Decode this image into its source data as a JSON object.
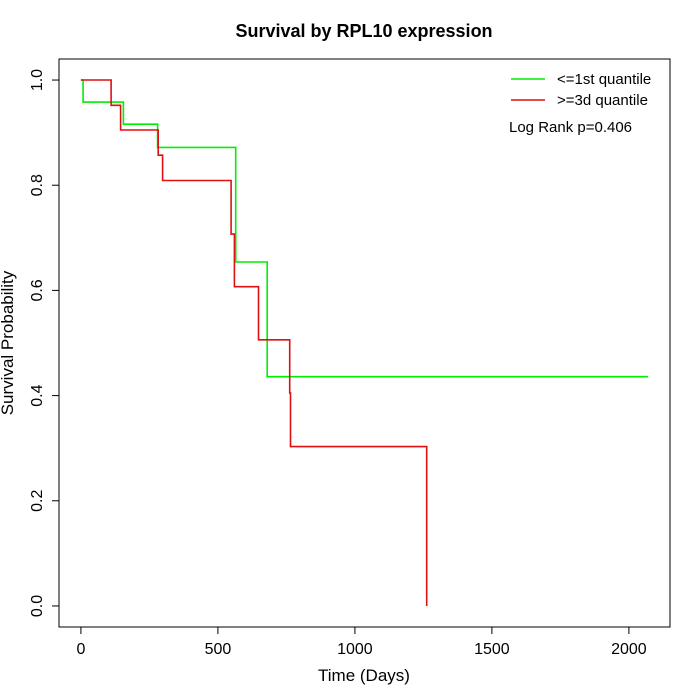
{
  "chart_data": {
    "type": "line",
    "step": true,
    "title": "Survival by RPL10 expression",
    "xlabel": "Time (Days)",
    "ylabel": "Survival Probability",
    "xlim": [
      -80,
      2150
    ],
    "ylim": [
      -0.04,
      1.04
    ],
    "xticks": [
      0,
      500,
      1000,
      1500,
      2000
    ],
    "xtick_labels": [
      "0",
      "500",
      "1000",
      "1500",
      "2000"
    ],
    "yticks": [
      0.0,
      0.2,
      0.4,
      0.6,
      0.8,
      1.0
    ],
    "ytick_labels": [
      "0.0",
      "0.2",
      "0.4",
      "0.6",
      "0.8",
      "1.0"
    ],
    "grid": false,
    "legend_position": "top-right",
    "annotation": "Log Rank p=0.406",
    "series": [
      {
        "name": "<=1st quantile",
        "color": "#00ee00",
        "x": [
          0,
          8,
          155,
          280,
          565,
          680,
          2070
        ],
        "y": [
          1.0,
          0.958,
          0.916,
          0.872,
          0.654,
          0.436,
          0.436
        ]
      },
      {
        "name": ">=3d quantile",
        "color": "#dd1111",
        "x": [
          0,
          110,
          145,
          282,
          298,
          548,
          560,
          648,
          762,
          765,
          1262,
          1262
        ],
        "y": [
          1.0,
          0.952,
          0.905,
          0.857,
          0.809,
          0.707,
          0.607,
          0.506,
          0.405,
          0.303,
          0.303,
          0.0
        ]
      }
    ]
  }
}
